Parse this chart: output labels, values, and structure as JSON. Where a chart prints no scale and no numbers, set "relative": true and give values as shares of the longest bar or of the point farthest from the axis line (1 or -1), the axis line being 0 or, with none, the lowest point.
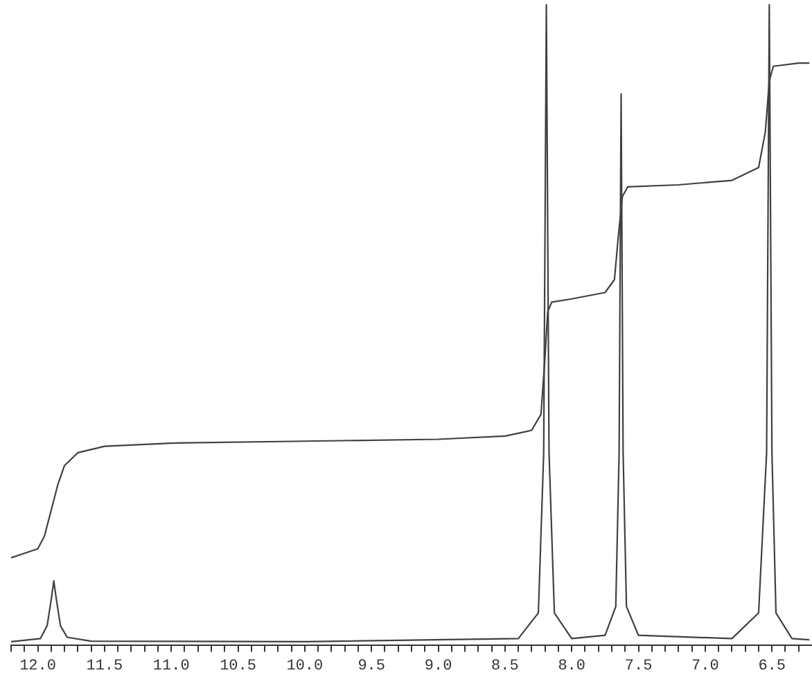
{
  "chart_data": {
    "type": "line",
    "relative": true,
    "xlim": [
      12.2,
      6.2
    ],
    "legend": false,
    "grid": false,
    "tick_labels": "x",
    "marker": "none",
    "line_style": "solid",
    "xticks": [
      {
        "value": 12.2,
        "label": null
      },
      {
        "value": 12.1,
        "label": null
      },
      {
        "value": 12,
        "label": "12.0"
      },
      {
        "value": 11.9,
        "label": null
      },
      {
        "value": 11.8,
        "label": null
      },
      {
        "value": 11.7,
        "label": null
      },
      {
        "value": 11.6,
        "label": null
      },
      {
        "value": 11.5,
        "label": "11.5"
      },
      {
        "value": 11.4,
        "label": null
      },
      {
        "value": 11.3,
        "label": null
      },
      {
        "value": 11.2,
        "label": null
      },
      {
        "value": 11.1,
        "label": null
      },
      {
        "value": 11,
        "label": "11.0"
      },
      {
        "value": 10.9,
        "label": null
      },
      {
        "value": 10.8,
        "label": null
      },
      {
        "value": 10.7,
        "label": null
      },
      {
        "value": 10.6,
        "label": null
      },
      {
        "value": 10.5,
        "label": "10.5"
      },
      {
        "value": 10.4,
        "label": null
      },
      {
        "value": 10.3,
        "label": null
      },
      {
        "value": 10.2,
        "label": null
      },
      {
        "value": 10.1,
        "label": null
      },
      {
        "value": 10,
        "label": "10.0"
      },
      {
        "value": 9.9,
        "label": null
      },
      {
        "value": 9.8,
        "label": null
      },
      {
        "value": 9.7,
        "label": null
      },
      {
        "value": 9.6,
        "label": null
      },
      {
        "value": 9.5,
        "label": "9.5"
      },
      {
        "value": 9.4,
        "label": null
      },
      {
        "value": 9.3,
        "label": null
      },
      {
        "value": 9.2,
        "label": null
      },
      {
        "value": 9.1,
        "label": null
      },
      {
        "value": 9,
        "label": "9.0"
      },
      {
        "value": 8.9,
        "label": null
      },
      {
        "value": 8.8,
        "label": null
      },
      {
        "value": 8.7,
        "label": null
      },
      {
        "value": 8.6,
        "label": null
      },
      {
        "value": 8.5,
        "label": "8.5"
      },
      {
        "value": 8.4,
        "label": null
      },
      {
        "value": 8.3,
        "label": null
      },
      {
        "value": 8.2,
        "label": null
      },
      {
        "value": 8.1,
        "label": null
      },
      {
        "value": 8,
        "label": "8.0"
      },
      {
        "value": 7.9,
        "label": null
      },
      {
        "value": 7.8,
        "label": null
      },
      {
        "value": 7.7,
        "label": null
      },
      {
        "value": 7.6,
        "label": null
      },
      {
        "value": 7.5,
        "label": "7.5"
      },
      {
        "value": 7.4,
        "label": null
      },
      {
        "value": 7.3,
        "label": null
      },
      {
        "value": 7.2,
        "label": null
      },
      {
        "value": 7.1,
        "label": null
      },
      {
        "value": 7,
        "label": "7.0"
      },
      {
        "value": 6.9,
        "label": null
      },
      {
        "value": 6.8,
        "label": null
      },
      {
        "value": 6.7,
        "label": null
      },
      {
        "value": 6.6,
        "label": null
      },
      {
        "value": 6.5,
        "label": "6.5"
      },
      {
        "value": 6.4,
        "label": null
      },
      {
        "value": 6.3,
        "label": null
      }
    ],
    "series": [
      {
        "color": "#404040",
        "x": [
          12.2,
          11.98,
          11.93,
          11.9,
          11.88,
          11.86,
          11.83,
          11.78,
          11.6,
          10,
          8.4,
          8.25,
          8.21,
          8.19,
          8.17,
          8.13,
          8,
          7.75,
          7.67,
          7.645,
          7.63,
          7.615,
          7.59,
          7.5,
          6.8,
          6.6,
          6.54,
          6.52,
          6.5,
          6.47,
          6.35,
          6.22
        ],
        "values": [
          0.005,
          0.01,
          0.03,
          0.07,
          0.1,
          0.07,
          0.03,
          0.012,
          0.006,
          0.005,
          0.01,
          0.05,
          0.3,
          1,
          0.3,
          0.05,
          0.01,
          0.015,
          0.06,
          0.3,
          0.86,
          0.3,
          0.06,
          0.015,
          0.01,
          0.05,
          0.3,
          1,
          0.3,
          0.05,
          0.01,
          0.008
        ]
      },
      {
        "color": "#404040",
        "x": [
          12.2,
          12,
          11.95,
          11.9,
          11.85,
          11.8,
          11.7,
          11.5,
          11,
          10,
          9,
          8.5,
          8.3,
          8.23,
          8.2,
          8.18,
          8.15,
          8,
          7.75,
          7.68,
          7.65,
          7.62,
          7.58,
          7.2,
          6.8,
          6.6,
          6.55,
          6.52,
          6.49,
          6.3,
          6.22
        ],
        "values": [
          0.136,
          0.15,
          0.17,
          0.21,
          0.25,
          0.28,
          0.3,
          0.31,
          0.315,
          0.318,
          0.321,
          0.326,
          0.335,
          0.36,
          0.45,
          0.52,
          0.535,
          0.54,
          0.55,
          0.57,
          0.64,
          0.7,
          0.715,
          0.718,
          0.725,
          0.745,
          0.8,
          0.88,
          0.903,
          0.908,
          0.908
        ]
      }
    ]
  }
}
